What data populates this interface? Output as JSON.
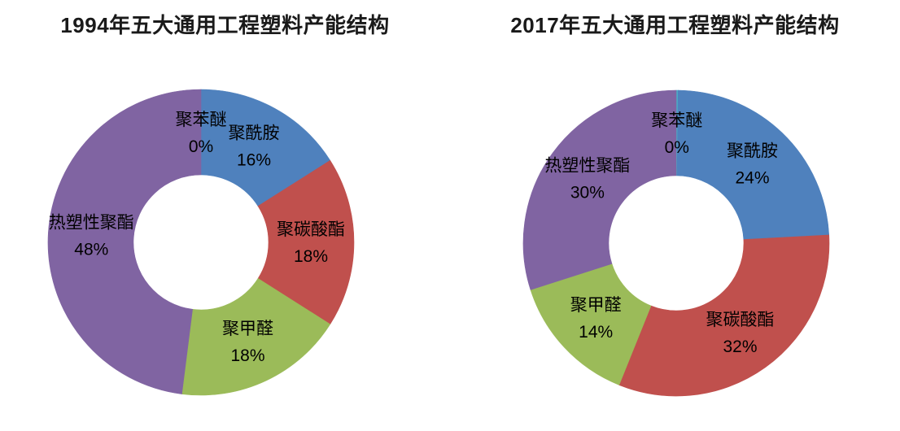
{
  "page": {
    "background_color": "#ffffff",
    "text_color": "#000000",
    "title_color": "#1a1a1a"
  },
  "chart_data": [
    {
      "type": "pie",
      "subtype": "donut",
      "title": "1994年五大通用工程塑料产能结构",
      "legend": "none",
      "grid": "off",
      "start_angle_deg": 0,
      "direction": "clockwise",
      "donut_hole_ratio": 0.44,
      "label_format": "name + percent, inside slices",
      "categories": [
        "聚苯醚",
        "聚酰胺",
        "聚碳酸酯",
        "聚甲醛",
        "热塑性聚酯"
      ],
      "values": [
        0,
        16,
        18,
        18,
        48
      ],
      "slices": [
        {
          "name": "聚苯醚",
          "display_pct": "0%",
          "value": 0,
          "color": "#4bacc6"
        },
        {
          "name": "聚酰胺",
          "display_pct": "16%",
          "value": 16,
          "color": "#4f81bd"
        },
        {
          "name": "聚碳酸酯",
          "display_pct": "18%",
          "value": 18,
          "color": "#c0504d"
        },
        {
          "name": "聚甲醛",
          "display_pct": "18%",
          "value": 18,
          "color": "#9bbb59"
        },
        {
          "name": "热塑性聚酯",
          "display_pct": "48%",
          "value": 48,
          "color": "#8064a2"
        }
      ]
    },
    {
      "type": "pie",
      "subtype": "donut",
      "title": "2017年五大通用工程塑料产能结构",
      "legend": "none",
      "grid": "off",
      "start_angle_deg": 0,
      "direction": "clockwise",
      "donut_hole_ratio": 0.44,
      "label_format": "name + percent, inside slices",
      "categories": [
        "聚苯醚",
        "聚酰胺",
        "聚碳酸酯",
        "聚甲醛",
        "热塑性聚酯"
      ],
      "values": [
        0,
        24,
        32,
        14,
        30
      ],
      "slices": [
        {
          "name": "聚苯醚",
          "display_pct": "0%",
          "value": 0.2,
          "color": "#4bacc6"
        },
        {
          "name": "聚酰胺",
          "display_pct": "24%",
          "value": 24,
          "color": "#4f81bd"
        },
        {
          "name": "聚碳酸酯",
          "display_pct": "32%",
          "value": 32,
          "color": "#c0504d"
        },
        {
          "name": "聚甲醛",
          "display_pct": "14%",
          "value": 14,
          "color": "#9bbb59"
        },
        {
          "name": "热塑性聚酯",
          "display_pct": "30%",
          "value": 30,
          "color": "#8064a2"
        }
      ]
    }
  ]
}
